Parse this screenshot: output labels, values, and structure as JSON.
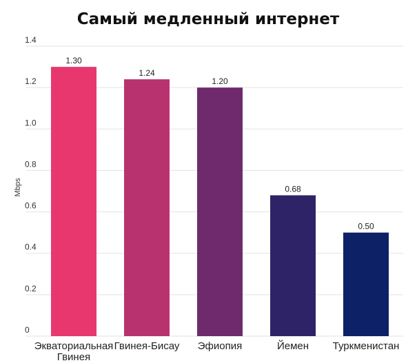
{
  "chart_data": {
    "type": "bar",
    "title": "Самый медленный интернет",
    "ylabel": "Mbps",
    "xlabel": "",
    "categories": [
      [
        "Экваториальная",
        "Гвинея"
      ],
      [
        "Гвинея-Бисау"
      ],
      [
        "Эфиопия"
      ],
      [
        "Йемен"
      ],
      [
        "Туркменистан"
      ]
    ],
    "values": [
      1.3,
      1.24,
      1.2,
      0.68,
      0.5
    ],
    "value_labels": [
      "1.30",
      "1.24",
      "1.20",
      "0.68",
      "0.50"
    ],
    "bar_colors": [
      "#e8376f",
      "#b93270",
      "#6e2a6c",
      "#2f2368",
      "#0d2167"
    ],
    "ylim": [
      0,
      1.4
    ],
    "y_ticks": [
      0,
      0.2,
      0.4,
      0.6,
      0.8,
      1.0,
      1.2,
      1.4
    ],
    "y_tick_labels": [
      "0",
      "0.2",
      "0.4",
      "0.6",
      "0.8",
      "1.0",
      "1.2",
      "1.4"
    ],
    "grid": true,
    "legend": "none"
  }
}
